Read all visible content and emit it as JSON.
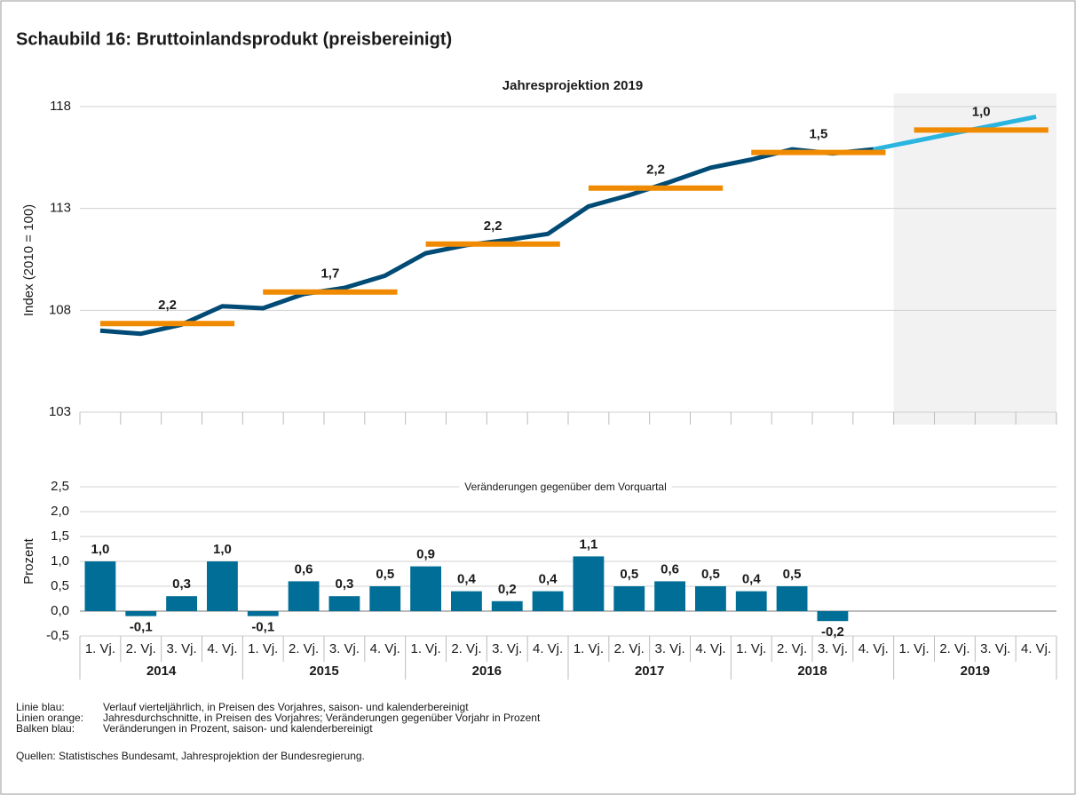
{
  "title": "Schaubild 16: Bruttoinlandsprodukt (preisbereinigt)",
  "chart_data": [
    {
      "type": "line",
      "subtitle": "Jahresprojektion 2019",
      "ylabel": "Index (2010 = 100)",
      "categories": [
        "1. Vj.",
        "2. Vj.",
        "3. Vj.",
        "4. Vj.",
        "1. Vj.",
        "2. Vj.",
        "3. Vj.",
        "4. Vj.",
        "1. Vj.",
        "2. Vj.",
        "3. Vj.",
        "4. Vj.",
        "1. Vj.",
        "2. Vj.",
        "3. Vj.",
        "4. Vj.",
        "1. Vj.",
        "2. Vj.",
        "3. Vj.",
        "4. Vj.",
        "1. Vj.",
        "2. Vj.",
        "3. Vj.",
        "4. Vj."
      ],
      "series": [
        {
          "color": "#004b76",
          "values": [
            107.0,
            106.85,
            107.3,
            108.2,
            108.1,
            108.8,
            109.1,
            109.7,
            110.8,
            111.2,
            111.45,
            111.75,
            113.1,
            113.65,
            114.3,
            115.0,
            115.4,
            115.9,
            115.7,
            115.9,
            null,
            null,
            null,
            null
          ]
        },
        {
          "color": "#29b5e0",
          "values": [
            null,
            null,
            null,
            null,
            null,
            null,
            null,
            null,
            null,
            null,
            null,
            null,
            null,
            null,
            null,
            null,
            null,
            null,
            null,
            null,
            116.3,
            116.7,
            117.1,
            117.5
          ]
        }
      ],
      "annual": {
        "color": "#f08a00",
        "values": [
          107.35,
          108.9,
          111.25,
          114.0,
          115.75,
          116.85
        ],
        "value_labels": [
          "2,2",
          "1,7",
          "2,2",
          "2,2",
          "1,5",
          "1,0"
        ]
      },
      "ylim": [
        103,
        118
      ],
      "yticks": [
        103,
        108,
        113,
        118
      ],
      "grid": true
    },
    {
      "type": "bar",
      "annotation": "Veränderungen gegenüber dem Vorquartal",
      "ylabel": "Prozent",
      "categories": [
        "1. Vj.",
        "2. Vj.",
        "3. Vj.",
        "4. Vj.",
        "1. Vj.",
        "2. Vj.",
        "3. Vj.",
        "4. Vj.",
        "1. Vj.",
        "2. Vj.",
        "3. Vj.",
        "4. Vj.",
        "1. Vj.",
        "2. Vj.",
        "3. Vj.",
        "4. Vj.",
        "1. Vj.",
        "2. Vj.",
        "3. Vj.",
        "4. Vj.",
        "1. Vj.",
        "2. Vj.",
        "3. Vj.",
        "4. Vj."
      ],
      "years": [
        "2014",
        "2015",
        "2016",
        "2017",
        "2018",
        "2019"
      ],
      "values": [
        1.0,
        -0.1,
        0.3,
        1.0,
        -0.1,
        0.6,
        0.3,
        0.5,
        0.9,
        0.4,
        0.2,
        0.4,
        1.1,
        0.5,
        0.6,
        0.5,
        0.4,
        0.5,
        -0.2,
        null,
        null,
        null,
        null,
        null
      ],
      "value_labels": [
        "1,0",
        "-0,1",
        "0,3",
        "1,0",
        "-0,1",
        "0,6",
        "0,3",
        "0,5",
        "0,9",
        "0,4",
        "0,2",
        "0,4",
        "1,1",
        "0,5",
        "0,6",
        "0,5",
        "0,4",
        "0,5",
        "-0,2",
        null,
        null,
        null,
        null,
        null
      ],
      "color": "#006e96",
      "ylim": [
        -0.5,
        2.5
      ],
      "yticks": [
        {
          "value": -0.5,
          "label": "-0,5"
        },
        {
          "value": 0,
          "label": "0,0"
        },
        {
          "value": 0.5,
          "label": "0,5"
        },
        {
          "value": 1,
          "label": "1,0"
        },
        {
          "value": 1.5,
          "label": "1,5"
        },
        {
          "value": 2,
          "label": "2,0"
        },
        {
          "value": 2.5,
          "label": "2,5"
        }
      ],
      "grid": true
    }
  ],
  "notes": [
    {
      "label": "Linie blau:",
      "text": "Verlauf vierteljährlich, in Preisen des Vorjahres, saison- und kalenderbereinigt"
    },
    {
      "label": "Linien orange:",
      "text": "Jahresdurchschnitte, in Preisen des Vorjahres; Veränderungen gegenüber Vorjahr in Prozent"
    },
    {
      "label": "Balken blau:",
      "text": "Veränderungen in Prozent, saison- und kalenderbereinigt"
    }
  ],
  "source": "Quellen: Statistisches Bundesamt, Jahresprojektion der Bundesregierung."
}
